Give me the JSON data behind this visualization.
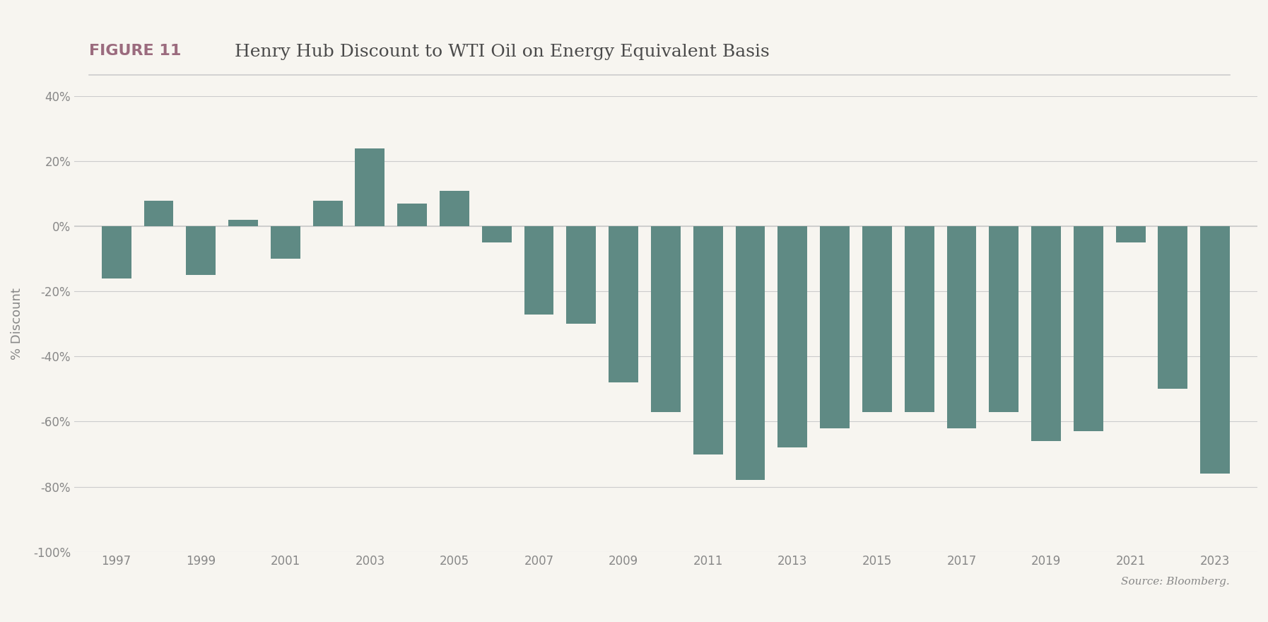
{
  "title_figure": "FIGURE 11",
  "title_main": "Henry Hub Discount to WTI Oil on Energy Equivalent Basis",
  "years": [
    1997,
    1998,
    1999,
    2000,
    2001,
    2002,
    2003,
    2004,
    2005,
    2006,
    2007,
    2008,
    2009,
    2010,
    2011,
    2012,
    2013,
    2014,
    2015,
    2016,
    2017,
    2018,
    2019,
    2020,
    2021,
    2022,
    2023
  ],
  "values": [
    -16,
    8,
    -15,
    2,
    -10,
    8,
    24,
    7,
    11,
    -5,
    -27,
    -30,
    -48,
    -57,
    -70,
    -78,
    -68,
    -62,
    -57,
    -57,
    -62,
    -57,
    -66,
    -63,
    -5,
    -50,
    -76
  ],
  "bar_color": "#5f8a84",
  "ylabel": "% Discount",
  "ylim": [
    -100,
    40
  ],
  "yticks": [
    -100,
    -80,
    -60,
    -40,
    -20,
    0,
    20,
    40
  ],
  "xtick_labels": [
    "1997",
    "1999",
    "2001",
    "2003",
    "2005",
    "2007",
    "2009",
    "2011",
    "2013",
    "2015",
    "2017",
    "2019",
    "2021",
    "2023"
  ],
  "source_text": "Source: Bloomberg.",
  "background_color": "#f7f5f0",
  "bar_width": 0.7,
  "title_figure_color": "#9b6b7e",
  "title_main_color": "#4a4a4a",
  "axis_color": "#cccccc",
  "tick_color": "#888888",
  "zero_line_color": "#cccccc"
}
